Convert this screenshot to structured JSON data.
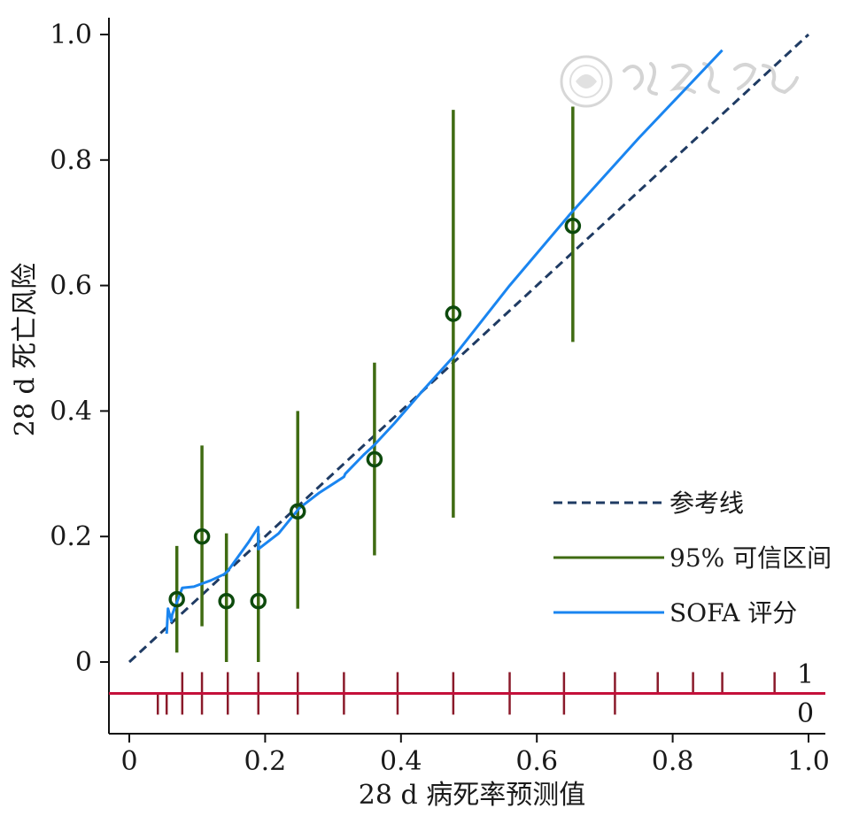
{
  "chart_data": {
    "type": "line",
    "title": "",
    "xlabel": "28 d 病死率预测值",
    "ylabel": "28 d 死亡风险",
    "xlim": [
      0,
      1.0
    ],
    "ylim": [
      -0.11,
      1.02
    ],
    "x_ticks": [
      "0",
      "0.2",
      "0.4",
      "0.6",
      "0.8",
      "1.0"
    ],
    "y_ticks": [
      "0",
      "0.2",
      "0.4",
      "0.6",
      "0.8",
      "1.0"
    ],
    "grid": false,
    "legend_position": "bottom-right",
    "series": [
      {
        "name": "参考线",
        "style": "dashed",
        "color": "#1f3b63",
        "x": [
          0,
          1.0
        ],
        "y": [
          0,
          1.0
        ]
      },
      {
        "name": "95% 可信区间",
        "style": "errorbar",
        "color": "#3f6b12",
        "x": [
          0.07,
          0.107,
          0.143,
          0.19,
          0.248,
          0.361,
          0.477,
          0.653
        ],
        "y_point": [
          0.1,
          0.2,
          0.097,
          0.097,
          0.24,
          0.323,
          0.555,
          0.695
        ],
        "y_low": [
          0.015,
          0.057,
          0.0,
          0.0,
          0.085,
          0.17,
          0.23,
          0.51
        ],
        "y_high": [
          0.185,
          0.345,
          0.205,
          0.205,
          0.4,
          0.477,
          0.88,
          0.885
        ]
      },
      {
        "name": "SOFA 评分",
        "style": "solid",
        "color": "#1a85f0",
        "x": [
          0.055,
          0.057,
          0.062,
          0.063,
          0.078,
          0.095,
          0.12,
          0.14,
          0.145,
          0.175,
          0.19,
          0.19,
          0.22,
          0.25,
          0.28,
          0.316,
          0.318,
          0.345,
          0.36,
          0.39,
          0.43,
          0.48,
          0.56,
          0.65,
          0.75,
          0.873
        ],
        "y": [
          0.045,
          0.085,
          0.065,
          0.075,
          0.118,
          0.12,
          0.13,
          0.14,
          0.145,
          0.19,
          0.215,
          0.18,
          0.205,
          0.245,
          0.27,
          0.295,
          0.3,
          0.33,
          0.345,
          0.38,
          0.43,
          0.49,
          0.6,
          0.715,
          0.835,
          0.975
        ]
      }
    ],
    "rug": {
      "labels": [
        "1",
        "0"
      ],
      "baseline_y": -0.05,
      "color": "#c4103a",
      "tick_color": "#8a1a2a",
      "outcome_1_x": [
        0.078,
        0.107,
        0.145,
        0.19,
        0.248,
        0.316,
        0.395,
        0.477,
        0.56,
        0.64,
        0.715,
        0.778,
        0.83,
        0.873,
        0.95
      ],
      "outcome_0_x": [
        0.042,
        0.055,
        0.078,
        0.107,
        0.145,
        0.19,
        0.248,
        0.316,
        0.395,
        0.477,
        0.56,
        0.64,
        0.715
      ]
    },
    "points_marker": "open-circle",
    "points_color": "#0d4a0d"
  }
}
